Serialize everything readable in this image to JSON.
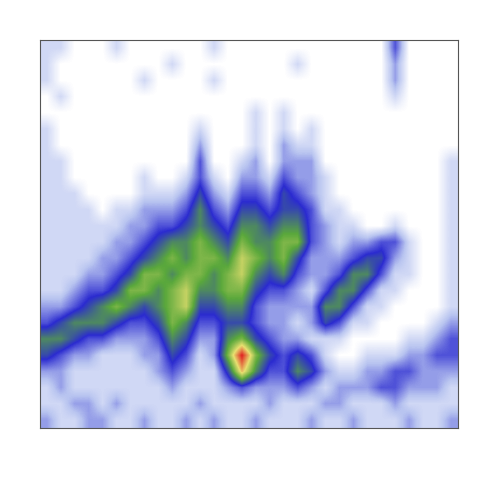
{
  "chart_data": {
    "type": "heatmap",
    "tick_labels": false,
    "zlim": [
      0,
      10
    ],
    "cells": [
      [
        1,
        1,
        0,
        0,
        0,
        1,
        0,
        0,
        0,
        0,
        0,
        0,
        1,
        0,
        0,
        0,
        0,
        0,
        0,
        0,
        0,
        0,
        0,
        0,
        0,
        3,
        0,
        0,
        0,
        0
      ],
      [
        1,
        0,
        0,
        0,
        0,
        0,
        0,
        0,
        0,
        1,
        0,
        0,
        0,
        0,
        0,
        0,
        0,
        0,
        1,
        0,
        0,
        0,
        0,
        0,
        0,
        2,
        0,
        0,
        0,
        0
      ],
      [
        1,
        0,
        0,
        0,
        0,
        0,
        0,
        1,
        0,
        0,
        0,
        0,
        1,
        0,
        0,
        0,
        0,
        0,
        0,
        0,
        0,
        0,
        0,
        0,
        0,
        2,
        0,
        0,
        0,
        0
      ],
      [
        0,
        1,
        0,
        0,
        0,
        0,
        0,
        0,
        0,
        0,
        0,
        0,
        0,
        0,
        0,
        0,
        0,
        0,
        0,
        0,
        0,
        0,
        0,
        0,
        0,
        1,
        0,
        0,
        0,
        0
      ],
      [
        0,
        0,
        0,
        0,
        0,
        0,
        0,
        0,
        0,
        0,
        0,
        0,
        0,
        0,
        0,
        1,
        0,
        1,
        0,
        0,
        0,
        0,
        0,
        0,
        0,
        0,
        0,
        0,
        0,
        0
      ],
      [
        1,
        0,
        0,
        0,
        0,
        0,
        0,
        0,
        0,
        0,
        0,
        1,
        0,
        0,
        0,
        1,
        0,
        1,
        0,
        1,
        0,
        0,
        0,
        0,
        0,
        0,
        0,
        0,
        0,
        0
      ],
      [
        1,
        0,
        0,
        0,
        0,
        0,
        0,
        0,
        0,
        0,
        0,
        2,
        0,
        0,
        0,
        1,
        0,
        2,
        1,
        1,
        0,
        0,
        0,
        0,
        0,
        0,
        0,
        0,
        0,
        0
      ],
      [
        1,
        1,
        0,
        0,
        0,
        0,
        0,
        0,
        0,
        0,
        0,
        3,
        0,
        0,
        1,
        2,
        0,
        2,
        2,
        2,
        0,
        0,
        0,
        0,
        0,
        0,
        0,
        0,
        0,
        1
      ],
      [
        1,
        1,
        0,
        0,
        0,
        0,
        0,
        1,
        0,
        0,
        1,
        3,
        1,
        0,
        2,
        2,
        1,
        3,
        2,
        2,
        1,
        0,
        0,
        0,
        0,
        0,
        0,
        0,
        0,
        1
      ],
      [
        1,
        1,
        1,
        0,
        0,
        0,
        0,
        1,
        1,
        1,
        2,
        4,
        2,
        1,
        3,
        3,
        2,
        4,
        3,
        2,
        1,
        0,
        0,
        0,
        0,
        0,
        0,
        0,
        0,
        1
      ],
      [
        1,
        1,
        1,
        1,
        0,
        1,
        1,
        2,
        2,
        2,
        3,
        5,
        3,
        2,
        4,
        4,
        3,
        4,
        4,
        3,
        1,
        1,
        0,
        0,
        0,
        0,
        0,
        0,
        0,
        1
      ],
      [
        1,
        1,
        1,
        1,
        1,
        1,
        2,
        2,
        3,
        3,
        4,
        5,
        4,
        3,
        5,
        5,
        4,
        5,
        5,
        3,
        2,
        1,
        1,
        0,
        0,
        1,
        0,
        0,
        0,
        1
      ],
      [
        1,
        1,
        1,
        1,
        1,
        2,
        2,
        3,
        4,
        5,
        5,
        6,
        5,
        4,
        6,
        5,
        5,
        6,
        6,
        3,
        2,
        1,
        2,
        2,
        3,
        3,
        1,
        0,
        0,
        1
      ],
      [
        1,
        1,
        1,
        1,
        2,
        2,
        3,
        4,
        5,
        6,
        5,
        6,
        6,
        5,
        7,
        6,
        5,
        6,
        4,
        2,
        2,
        2,
        3,
        4,
        4,
        2,
        1,
        0,
        0,
        1
      ],
      [
        1,
        1,
        1,
        2,
        2,
        3,
        4,
        6,
        6,
        5,
        6,
        6,
        5,
        6,
        7,
        5,
        4,
        5,
        3,
        2,
        2,
        3,
        5,
        5,
        3,
        1,
        1,
        0,
        0,
        1
      ],
      [
        1,
        1,
        2,
        3,
        3,
        4,
        6,
        6,
        5,
        6,
        7,
        5,
        5,
        6,
        6,
        4,
        3,
        3,
        2,
        1,
        3,
        5,
        5,
        3,
        1,
        1,
        0,
        0,
        0,
        1
      ],
      [
        2,
        2,
        3,
        4,
        5,
        6,
        5,
        4,
        5,
        6,
        7,
        4,
        4,
        5,
        5,
        3,
        2,
        2,
        2,
        2,
        5,
        5,
        3,
        1,
        1,
        0,
        0,
        0,
        0,
        1
      ],
      [
        3,
        4,
        5,
        5,
        5,
        4,
        3,
        3,
        4,
        6,
        5,
        3,
        3,
        4,
        4,
        3,
        2,
        2,
        1,
        2,
        4,
        3,
        1,
        1,
        0,
        0,
        0,
        0,
        1,
        2
      ],
      [
        5,
        5,
        4,
        3,
        3,
        2,
        2,
        2,
        3,
        5,
        4,
        2,
        2,
        5,
        6,
        4,
        3,
        2,
        2,
        1,
        1,
        1,
        0,
        0,
        0,
        0,
        1,
        1,
        2,
        3
      ],
      [
        4,
        3,
        2,
        2,
        1,
        1,
        1,
        2,
        2,
        4,
        3,
        1,
        2,
        6,
        10,
        6,
        4,
        3,
        4,
        3,
        1,
        0,
        0,
        1,
        1,
        1,
        2,
        2,
        3,
        3
      ],
      [
        2,
        2,
        1,
        1,
        1,
        1,
        1,
        1,
        2,
        3,
        2,
        1,
        1,
        4,
        8,
        5,
        3,
        3,
        5,
        4,
        2,
        1,
        1,
        2,
        2,
        3,
        3,
        2,
        2,
        2
      ],
      [
        1,
        2,
        1,
        1,
        1,
        1,
        1,
        1,
        1,
        2,
        1,
        1,
        1,
        2,
        3,
        2,
        2,
        2,
        3,
        2,
        1,
        2,
        2,
        2,
        3,
        3,
        2,
        2,
        2,
        1
      ],
      [
        1,
        1,
        2,
        2,
        1,
        2,
        1,
        1,
        1,
        1,
        1,
        2,
        1,
        1,
        1,
        1,
        2,
        1,
        1,
        1,
        2,
        2,
        1,
        1,
        1,
        2,
        1,
        1,
        1,
        1
      ],
      [
        2,
        1,
        1,
        2,
        2,
        1,
        1,
        2,
        1,
        1,
        2,
        1,
        2,
        1,
        1,
        2,
        1,
        1,
        1,
        2,
        1,
        1,
        2,
        1,
        1,
        1,
        2,
        1,
        1,
        2
      ]
    ]
  }
}
